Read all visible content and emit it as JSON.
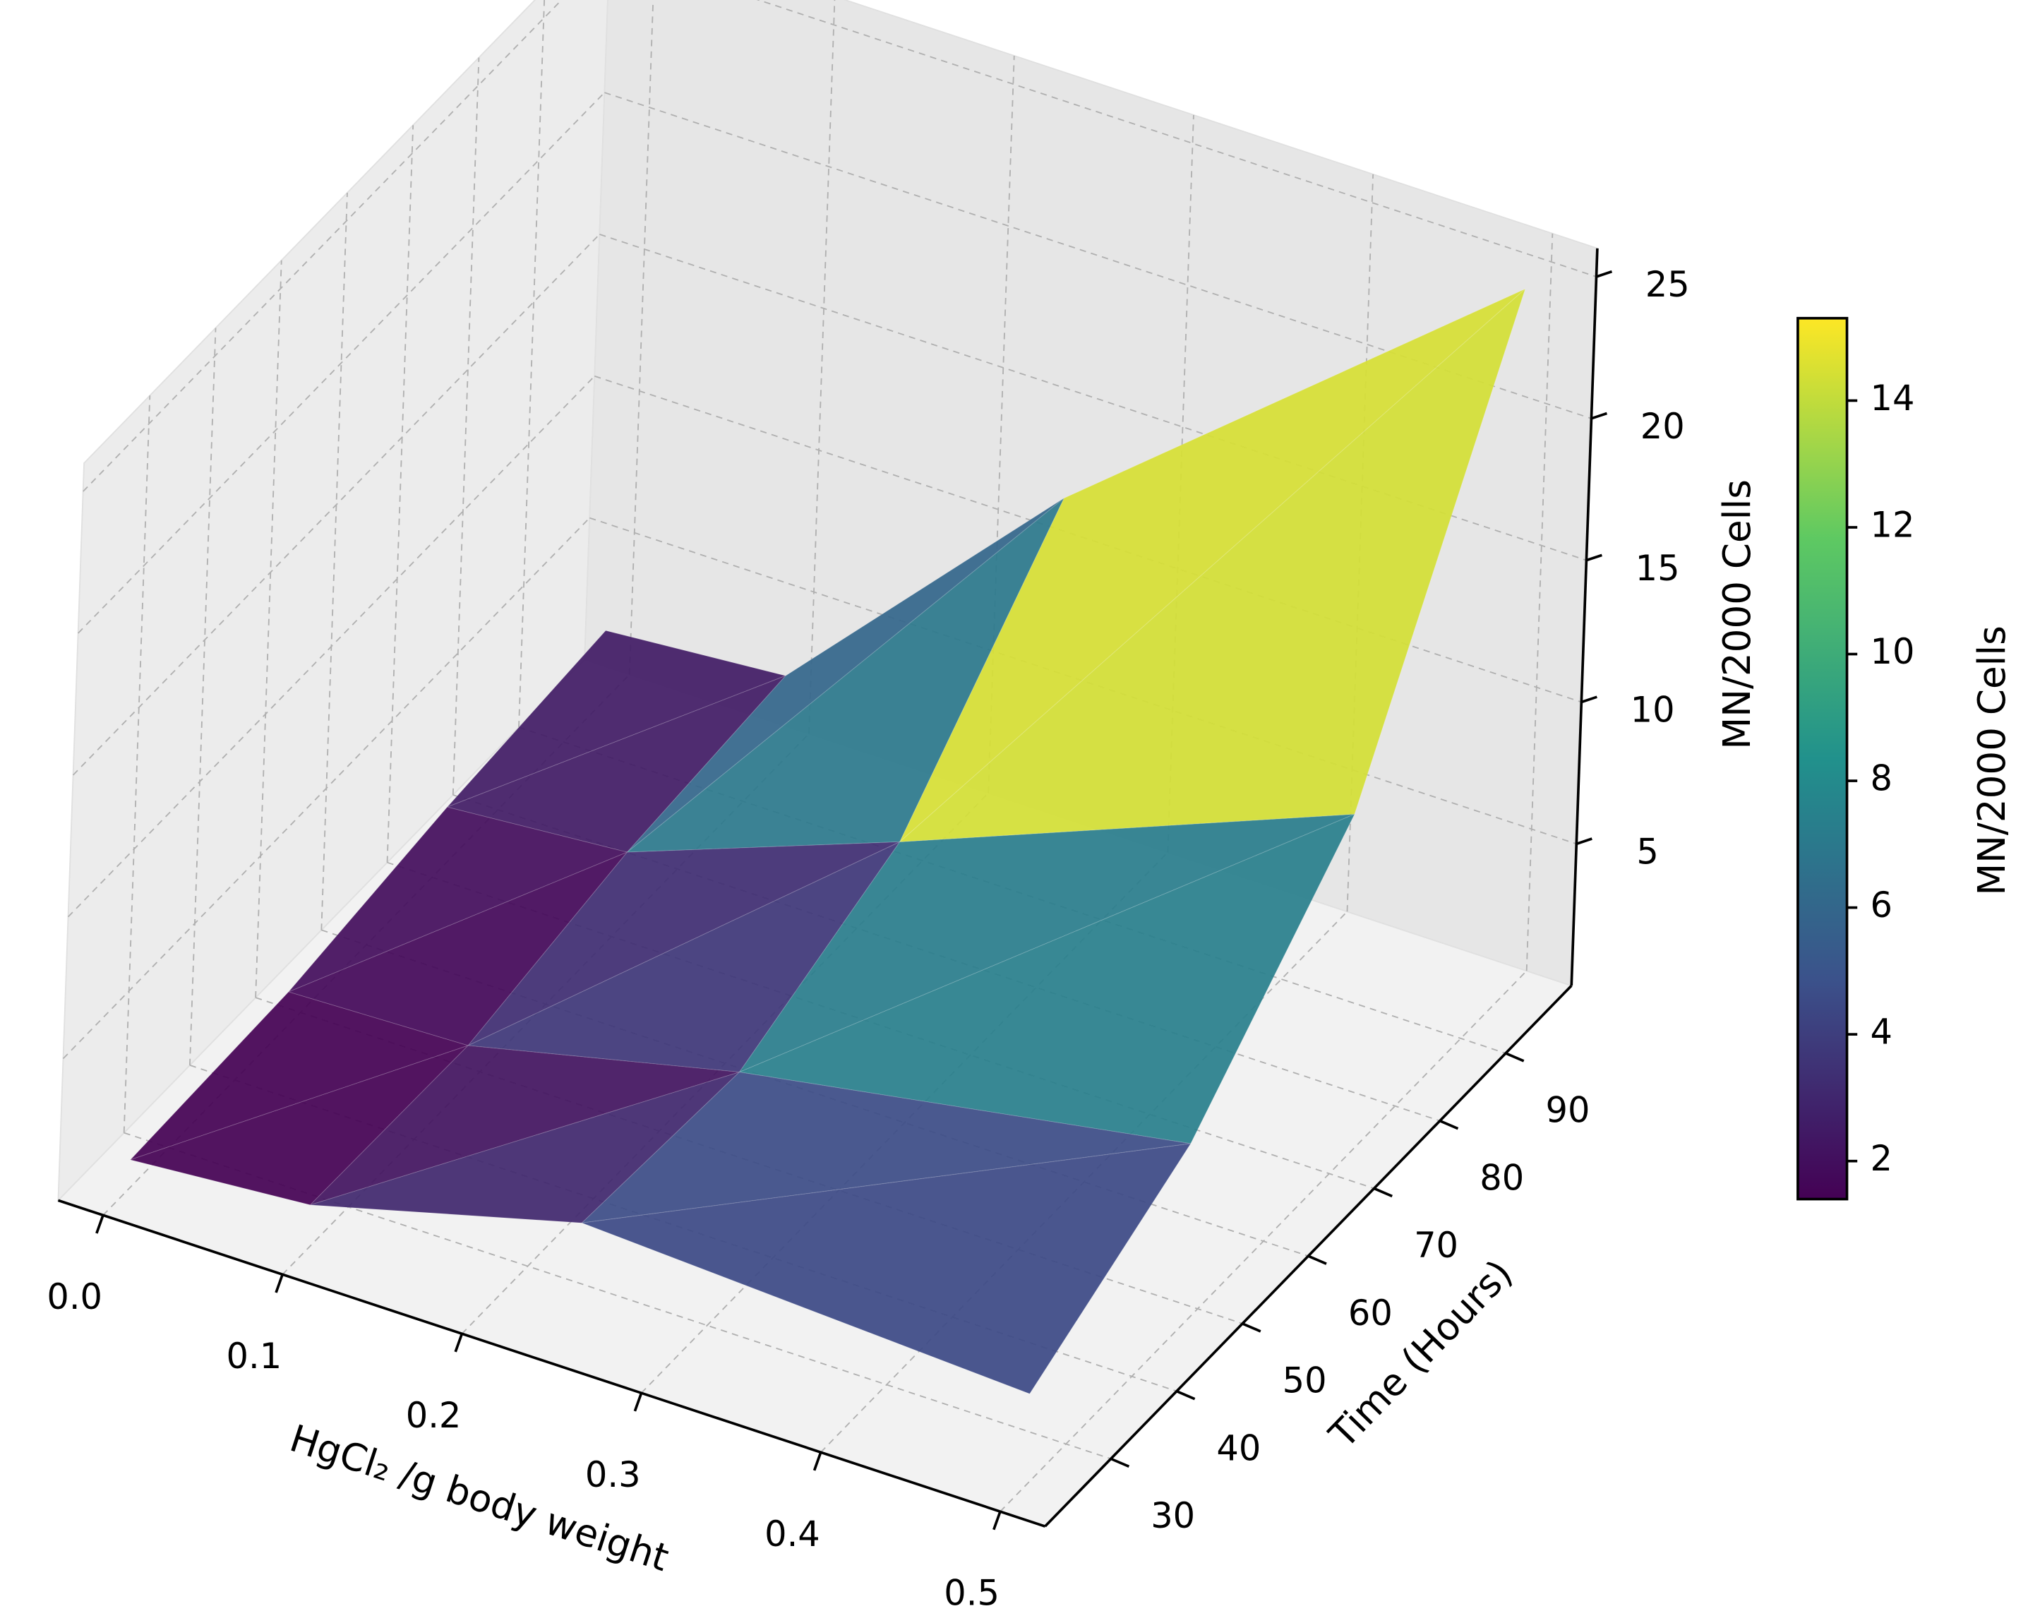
{
  "chart_data": {
    "type": "surface3d",
    "x_label": "HgCl₂ /g body weight",
    "y_label": "Time (Hours)",
    "z_label": "MN/2000 Cells",
    "x": [
      0,
      0.1,
      0.25,
      0.5
    ],
    "y": [
      24,
      48,
      72,
      96
    ],
    "z": [
      [
        1.0,
        1.5,
        4,
        3.2
      ],
      [
        1.2,
        1.4,
        3.6,
        6.3
      ],
      [
        2.0,
        2.5,
        6,
        12.2
      ],
      [
        2.5,
        3.0,
        12.4,
        25
      ]
    ],
    "xlim": [
      -0.025,
      0.525
    ],
    "xticks": [
      {
        "value": 0,
        "label": "0.0"
      },
      0.1,
      0.2,
      0.3,
      0.4,
      0.5
    ],
    "ylim": [
      20,
      100
    ],
    "yticks": [
      30,
      40,
      50,
      60,
      70,
      80,
      90
    ],
    "zlim": [
      0,
      26
    ],
    "zticks": [
      5,
      10,
      15,
      20,
      25
    ],
    "grid": true,
    "colormap": "viridis",
    "colorbar": {
      "label": "MN/2000 Cells",
      "clim": [
        1.4,
        15.3
      ],
      "ticks": [
        2,
        4,
        6,
        8,
        10,
        12,
        14
      ]
    }
  }
}
